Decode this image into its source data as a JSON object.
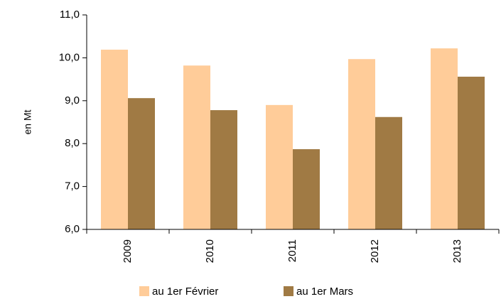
{
  "chart_data": {
    "type": "bar",
    "y_label": "en Mt",
    "categories": [
      "2009",
      "2010",
      "2011",
      "2012",
      "2013"
    ],
    "series": [
      {
        "name": "au 1er Février",
        "color": "#ffcc99",
        "values": [
          10.19,
          9.82,
          8.9,
          9.97,
          10.22
        ]
      },
      {
        "name": "au 1er Mars",
        "color": "#a07a44",
        "values": [
          9.06,
          8.78,
          7.87,
          8.62,
          9.56
        ]
      }
    ],
    "ylim": [
      6,
      11
    ],
    "yticks": [
      {
        "value": 6,
        "label": "6,0"
      },
      {
        "value": 7,
        "label": "7,0"
      },
      {
        "value": 8,
        "label": "8,0"
      },
      {
        "value": 9,
        "label": "9,0"
      },
      {
        "value": 10,
        "label": "10,0"
      },
      {
        "value": 11,
        "label": "11,0"
      }
    ],
    "grid": false,
    "legend": "bottom"
  }
}
